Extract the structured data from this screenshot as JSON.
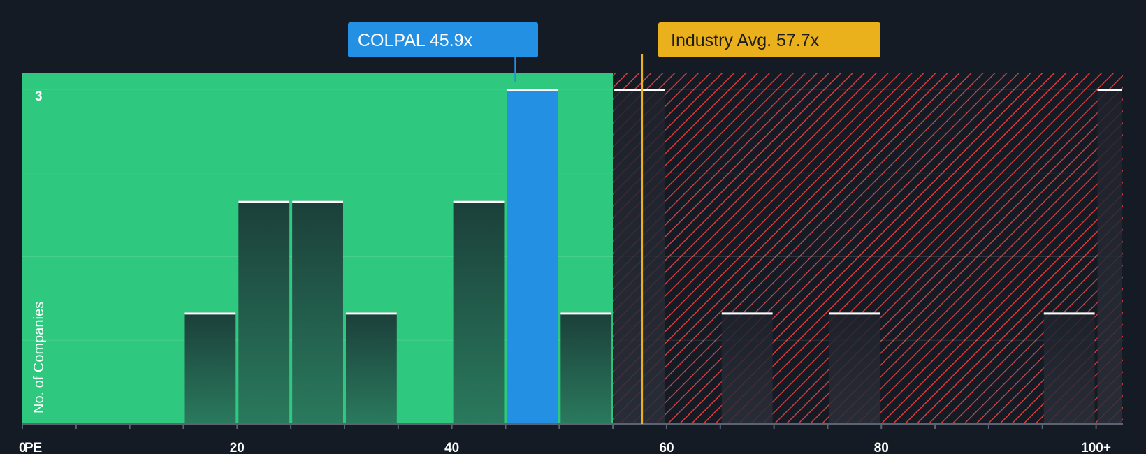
{
  "chart_data": {
    "type": "bar",
    "title": "",
    "xlabel": "PE",
    "ylabel": "No. of Companies",
    "xlim": [
      0,
      102.5
    ],
    "ylim": [
      0,
      3.15
    ],
    "x_ticks": [
      {
        "value": 0,
        "label": "0"
      },
      {
        "value": 20,
        "label": "20"
      },
      {
        "value": 40,
        "label": "40"
      },
      {
        "value": 60,
        "label": "60"
      },
      {
        "value": 80,
        "label": "80"
      },
      {
        "value": 100,
        "label": "100+"
      }
    ],
    "y_max_label": "3",
    "bins": [
      {
        "x0": 15,
        "x1": 20,
        "count": 1
      },
      {
        "x0": 20,
        "x1": 25,
        "count": 2
      },
      {
        "x0": 25,
        "x1": 30,
        "count": 2
      },
      {
        "x0": 30,
        "x1": 35,
        "count": 1
      },
      {
        "x0": 40,
        "x1": 45,
        "count": 2
      },
      {
        "x0": 45,
        "x1": 50,
        "count": 3,
        "highlight": true
      },
      {
        "x0": 50,
        "x1": 55,
        "count": 1
      },
      {
        "x0": 55,
        "x1": 60,
        "count": 3
      },
      {
        "x0": 65,
        "x1": 70,
        "count": 1
      },
      {
        "x0": 75,
        "x1": 80,
        "count": 1
      },
      {
        "x0": 95,
        "x1": 100,
        "count": 1
      },
      {
        "x0": 100,
        "x1": 105,
        "count": 3
      }
    ],
    "zones": {
      "good_until": 55,
      "good_color": "#2ec97e",
      "bad_color": "#d83a3a"
    },
    "company": {
      "name": "COLPAL",
      "value": 45.9,
      "label": "COLPAL 45.9x",
      "color": "#2490e3"
    },
    "industry": {
      "value": 57.7,
      "label": "Industry Avg. 57.7x",
      "color": "#eab11c"
    }
  }
}
